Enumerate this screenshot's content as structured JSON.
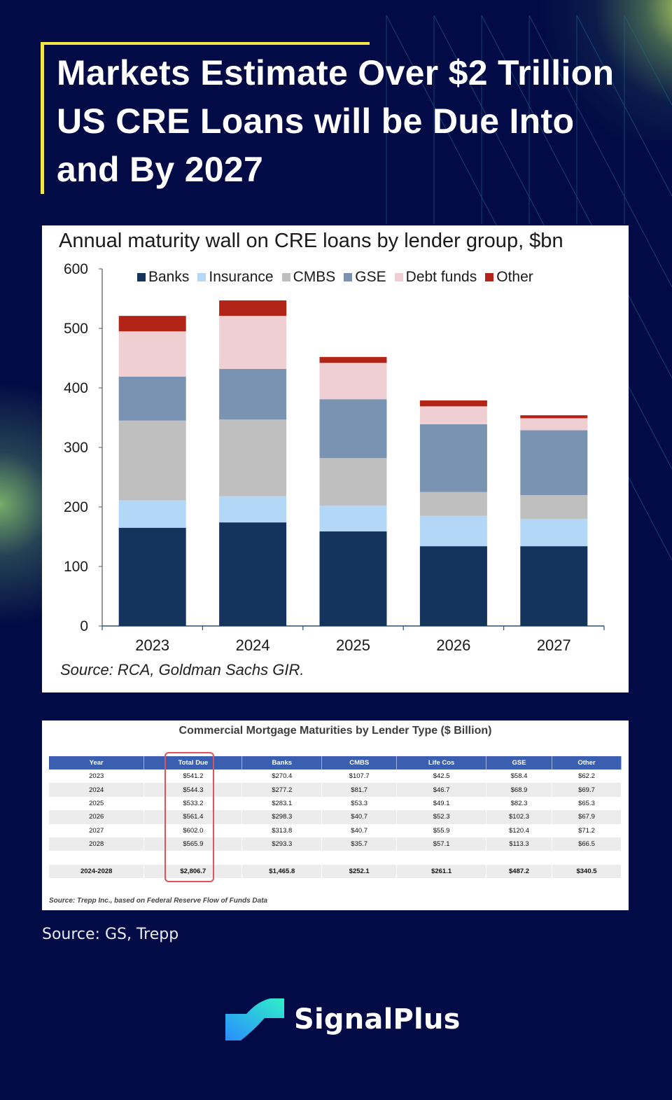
{
  "header": {
    "title": "Markets Estimate Over $2 Trillion US CRE Loans will be Due Into and By 2027",
    "accent_color": "#f2e64b",
    "background_color": "#020b45"
  },
  "chart_data": {
    "type": "bar",
    "stacked": true,
    "title": "Annual maturity wall on CRE loans by lender group, $bn",
    "xlabel": "",
    "ylabel": "",
    "ylim": [
      0,
      600
    ],
    "yticks": [
      0,
      100,
      200,
      300,
      400,
      500,
      600
    ],
    "categories": [
      "2023",
      "2024",
      "2025",
      "2026",
      "2027"
    ],
    "legend_position": "top",
    "grid": false,
    "series": [
      {
        "name": "Banks",
        "color": "#14345e",
        "values": [
          165,
          174,
          159,
          134,
          134
        ]
      },
      {
        "name": "Insurance",
        "color": "#b3d7f7",
        "values": [
          46,
          44,
          43,
          51,
          46
        ]
      },
      {
        "name": "CMBS",
        "color": "#bfbfbf",
        "values": [
          134,
          129,
          80,
          40,
          40
        ]
      },
      {
        "name": "GSE",
        "color": "#7b93b3",
        "values": [
          74,
          85,
          99,
          114,
          109
        ]
      },
      {
        "name": "Debt funds",
        "color": "#f0cfd2",
        "values": [
          76,
          89,
          61,
          30,
          20
        ]
      },
      {
        "name": "Other",
        "color": "#b22418",
        "values": [
          26,
          26,
          10,
          10,
          5
        ]
      }
    ],
    "source": "Source: RCA, Goldman Sachs GIR."
  },
  "table": {
    "title": "Commercial Mortgage Maturities by Lender Type ($ Billion)",
    "columns": [
      "Year",
      "Total Due",
      "Banks",
      "CMBS",
      "Life Cos",
      "GSE",
      "Other"
    ],
    "rows": [
      [
        "2023",
        "$541.2",
        "$270.4",
        "$107.7",
        "$42.5",
        "$58.4",
        "$62.2"
      ],
      [
        "2024",
        "$544.3",
        "$277.2",
        "$81.7",
        "$46.7",
        "$68.9",
        "$69.7"
      ],
      [
        "2025",
        "$533.2",
        "$283.1",
        "$53.3",
        "$49.1",
        "$82.3",
        "$65.3"
      ],
      [
        "2026",
        "$561.4",
        "$298.3",
        "$40.7",
        "$52.3",
        "$102.3",
        "$67.9"
      ],
      [
        "2027",
        "$602.0",
        "$313.8",
        "$40.7",
        "$55.9",
        "$120.4",
        "$71.2"
      ],
      [
        "2028",
        "$565.9",
        "$293.3",
        "$35.7",
        "$57.1",
        "$113.3",
        "$66.5"
      ]
    ],
    "total_row": [
      "2024-2028",
      "$2,806.7",
      "$1,465.8",
      "$252.1",
      "$261.1",
      "$487.2",
      "$340.5"
    ],
    "highlighted_column": "Total Due",
    "header_color": "#3b5fb0",
    "highlight_color": "#e0535a",
    "source": "Source: Trepp Inc., based on Federal Reserve Flow of Funds Data"
  },
  "footer": {
    "source": "Source: GS, Trepp",
    "brand_name": "SignalPlus",
    "brand_icon": "signalplus-logo-icon"
  }
}
